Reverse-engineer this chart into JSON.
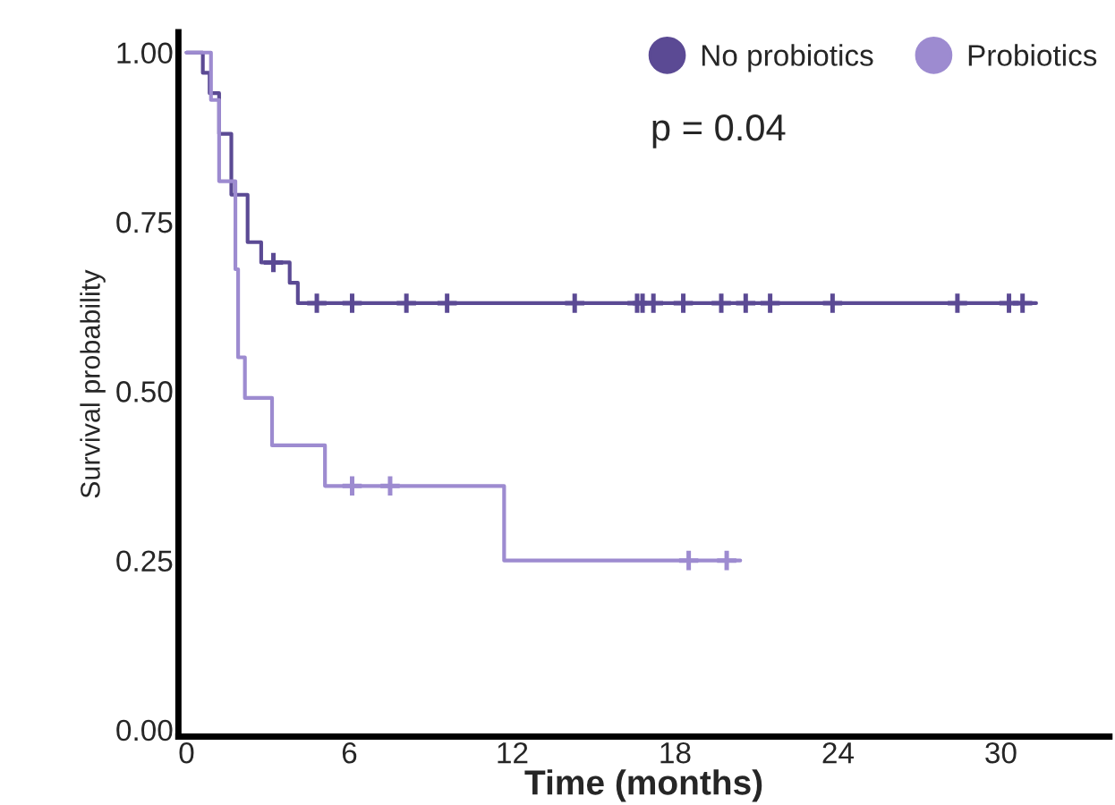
{
  "chart_data": {
    "type": "step",
    "xlabel": "Time (months)",
    "ylabel": "Survival probability",
    "annotations": [
      "p = 0.04"
    ],
    "xlim": [
      -0.3,
      34
    ],
    "xticks": [
      0,
      6,
      12,
      18,
      24,
      30
    ],
    "ylim": [
      -0.01,
      1.03
    ],
    "yticks": [
      {
        "value": 0,
        "label": "0.00"
      },
      {
        "value": 0.25,
        "label": "0.25"
      },
      {
        "value": 0.5,
        "label": "0.50"
      },
      {
        "value": 0.75,
        "label": "0.75"
      },
      {
        "value": 1,
        "label": "1.00"
      }
    ],
    "grid": false,
    "legend": "top right",
    "line_style": "solid",
    "series": [
      {
        "name": "No probiotics",
        "color": "#5b4a94",
        "x": [
          0,
          0.6,
          0.85,
          1.2,
          1.65,
          2.25,
          2.75,
          3.8,
          4.1,
          31.3
        ],
        "values": [
          1.0,
          0.97,
          0.94,
          0.88,
          0.79,
          0.72,
          0.69,
          0.66,
          0.63,
          0.63
        ]
      },
      {
        "name": "Probiotics",
        "color": "#9d8bd0",
        "x": [
          0,
          0.9,
          1.2,
          1.8,
          1.9,
          2.15,
          3.15,
          5.1,
          11.7,
          20.4
        ],
        "values": [
          1.0,
          0.93,
          0.81,
          0.68,
          0.55,
          0.49,
          0.42,
          0.36,
          0.25,
          0.25
        ]
      },
      {
        "type": "scatter",
        "marker": "cross",
        "color": "#5b4a94",
        "x": [
          3.2,
          4.8,
          6.1,
          8.1,
          9.6,
          14.3,
          16.6,
          16.8,
          17.2,
          18.3,
          19.7,
          20.6,
          21.5,
          23.8,
          28.4,
          30.3,
          30.8
        ],
        "values": [
          0.69,
          0.63,
          0.63,
          0.63,
          0.63,
          0.63,
          0.63,
          0.63,
          0.63,
          0.63,
          0.63,
          0.63,
          0.63,
          0.63,
          0.63,
          0.63,
          0.63
        ]
      },
      {
        "type": "scatter",
        "marker": "cross",
        "color": "#9d8bd0",
        "x": [
          6.1,
          7.5,
          18.5,
          19.9
        ],
        "values": [
          0.36,
          0.36,
          0.25,
          0.25
        ]
      }
    ]
  }
}
